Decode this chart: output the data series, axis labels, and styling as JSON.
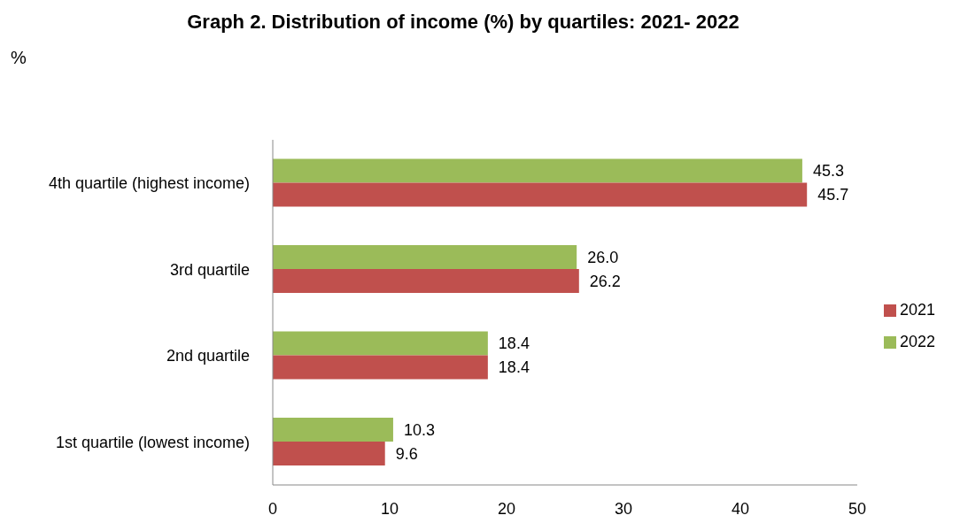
{
  "chart_data": {
    "type": "bar",
    "orientation": "horizontal",
    "title": "Graph 2. Distribution of income (%) by quartiles: 2021- 2022",
    "annotations": [
      "%"
    ],
    "categories": [
      "4th quartile (highest income)",
      "3rd quartile",
      "2nd quartile",
      "1st quartile (lowest income)"
    ],
    "series": [
      {
        "name": "2022",
        "color": "#9bbb59",
        "values": [
          45.3,
          26.0,
          18.4,
          10.3
        ],
        "value_labels": [
          "45.3",
          "26.0",
          "18.4",
          "10.3"
        ]
      },
      {
        "name": "2021",
        "color": "#c0504d",
        "values": [
          45.7,
          26.2,
          18.4,
          9.6
        ],
        "value_labels": [
          "45.7",
          "26.2",
          "18.4",
          "9.6"
        ]
      }
    ],
    "xlim": [
      0,
      50
    ],
    "xticks": [
      0,
      10,
      20,
      30,
      40,
      50
    ],
    "grid": false,
    "legend": "right"
  }
}
